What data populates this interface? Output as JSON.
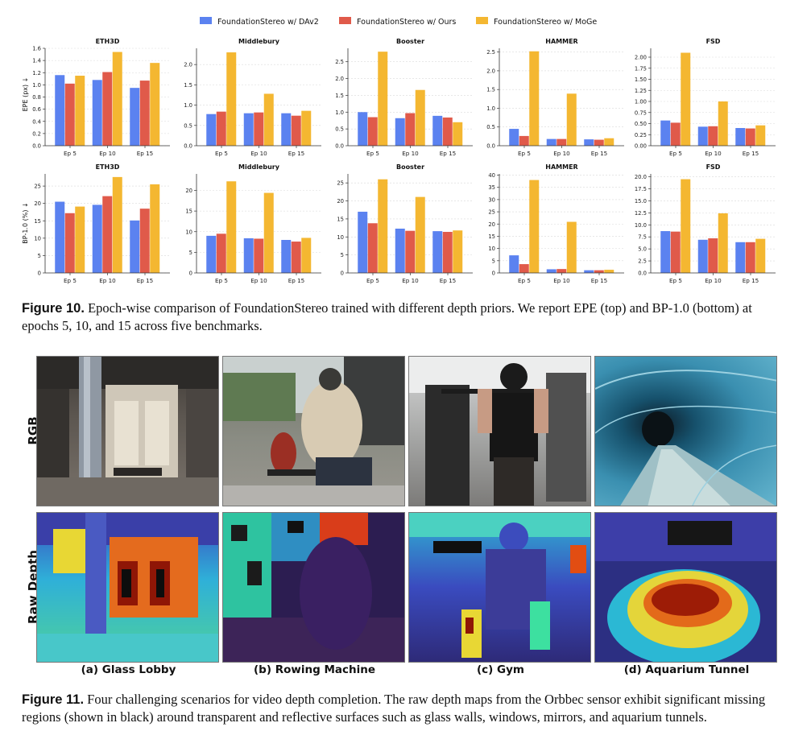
{
  "figure10": {
    "legend": [
      {
        "label": "FoundationStereo w/ DAv2",
        "color": "#5b82f0"
      },
      {
        "label": "FoundationStereo w/ Ours",
        "color": "#e05a4a"
      },
      {
        "label": "FoundationStereo w/ MoGe",
        "color": "#f4b731"
      }
    ],
    "row_ylabels": [
      "EPE (px) ↓",
      "BP-1.0 (%) ↓"
    ],
    "caption_lead": "Figure 10.",
    "caption_text": " Epoch-wise comparison of FoundationStereo trained with different depth priors. We report EPE (top) and BP-1.0 (bottom) at epochs 5, 10, and 15 across five benchmarks."
  },
  "chart_data": [
    {
      "type": "bar",
      "title": "ETH3D",
      "ylabel": "EPE (px) ↓",
      "categories": [
        "Ep 5",
        "Ep 10",
        "Ep 15"
      ],
      "ylim": [
        0,
        1.6
      ],
      "yticks": [
        "0.0",
        "0.2",
        "0.4",
        "0.6",
        "0.8",
        "1.0",
        "1.2",
        "1.4",
        "1.6"
      ],
      "series": [
        {
          "name": "FoundationStereo w/ DAv2",
          "values": [
            1.16,
            1.08,
            0.95
          ]
        },
        {
          "name": "FoundationStereo w/ Ours",
          "values": [
            1.02,
            1.21,
            1.07
          ]
        },
        {
          "name": "FoundationStereo w/ MoGe",
          "values": [
            1.15,
            1.54,
            1.36
          ]
        }
      ]
    },
    {
      "type": "bar",
      "title": "Middlebury",
      "ylabel": "",
      "categories": [
        "Ep 5",
        "Ep 10",
        "Ep 15"
      ],
      "ylim": [
        0,
        2.4
      ],
      "yticks": [
        "0.0",
        "0.5",
        "1.0",
        "1.5",
        "2.0"
      ],
      "series": [
        {
          "name": "FoundationStereo w/ DAv2",
          "values": [
            0.78,
            0.8,
            0.8
          ]
        },
        {
          "name": "FoundationStereo w/ Ours",
          "values": [
            0.84,
            0.82,
            0.74
          ]
        },
        {
          "name": "FoundationStereo w/ MoGe",
          "values": [
            2.3,
            1.28,
            0.86
          ]
        }
      ]
    },
    {
      "type": "bar",
      "title": "Booster",
      "ylabel": "",
      "categories": [
        "Ep 5",
        "Ep 10",
        "Ep 15"
      ],
      "ylim": [
        0,
        2.9
      ],
      "yticks": [
        "0.0",
        "0.5",
        "1.0",
        "1.5",
        "2.0",
        "2.5"
      ],
      "series": [
        {
          "name": "FoundationStereo w/ DAv2",
          "values": [
            1.0,
            0.82,
            0.89
          ]
        },
        {
          "name": "FoundationStereo w/ Ours",
          "values": [
            0.85,
            0.97,
            0.84
          ]
        },
        {
          "name": "FoundationStereo w/ MoGe",
          "values": [
            2.8,
            1.66,
            0.7
          ]
        }
      ]
    },
    {
      "type": "bar",
      "title": "HAMMER",
      "ylabel": "",
      "categories": [
        "Ep 5",
        "Ep 10",
        "Ep 15"
      ],
      "ylim": [
        0,
        2.6
      ],
      "yticks": [
        "0.0",
        "0.5",
        "1.0",
        "1.5",
        "2.0",
        "2.5"
      ],
      "series": [
        {
          "name": "FoundationStereo w/ DAv2",
          "values": [
            0.45,
            0.18,
            0.17
          ]
        },
        {
          "name": "FoundationStereo w/ Ours",
          "values": [
            0.26,
            0.18,
            0.16
          ]
        },
        {
          "name": "FoundationStereo w/ MoGe",
          "values": [
            2.52,
            1.39,
            0.2
          ]
        }
      ]
    },
    {
      "type": "bar",
      "title": "FSD",
      "ylabel": "",
      "categories": [
        "Ep 5",
        "Ep 10",
        "Ep 15"
      ],
      "ylim": [
        0,
        2.2
      ],
      "yticks": [
        "0.00",
        "0.25",
        "0.50",
        "0.75",
        "1.00",
        "1.25",
        "1.50",
        "1.75",
        "2.00"
      ],
      "series": [
        {
          "name": "FoundationStereo w/ DAv2",
          "values": [
            0.57,
            0.43,
            0.4
          ]
        },
        {
          "name": "FoundationStereo w/ Ours",
          "values": [
            0.52,
            0.44,
            0.39
          ]
        },
        {
          "name": "FoundationStereo w/ MoGe",
          "values": [
            2.1,
            1.0,
            0.46
          ]
        }
      ]
    },
    {
      "type": "bar",
      "title": "ETH3D",
      "ylabel": "BP-1.0 (%) ↓",
      "categories": [
        "Ep 5",
        "Ep 10",
        "Ep 15"
      ],
      "ylim": [
        0,
        28.5
      ],
      "yticks": [
        "0",
        "5",
        "10",
        "15",
        "20",
        "25"
      ],
      "series": [
        {
          "name": "FoundationStereo w/ DAv2",
          "values": [
            20.5,
            19.6,
            15.1
          ]
        },
        {
          "name": "FoundationStereo w/ Ours",
          "values": [
            17.2,
            22.1,
            18.5
          ]
        },
        {
          "name": "FoundationStereo w/ MoGe",
          "values": [
            19.1,
            27.6,
            25.5
          ]
        }
      ]
    },
    {
      "type": "bar",
      "title": "Middlebury",
      "ylabel": "",
      "categories": [
        "Ep 5",
        "Ep 10",
        "Ep 15"
      ],
      "ylim": [
        0,
        24
      ],
      "yticks": [
        "0",
        "5",
        "10",
        "15",
        "20"
      ],
      "series": [
        {
          "name": "FoundationStereo w/ DAv2",
          "values": [
            9.0,
            8.4,
            8.0
          ]
        },
        {
          "name": "FoundationStereo w/ Ours",
          "values": [
            9.5,
            8.3,
            7.6
          ]
        },
        {
          "name": "FoundationStereo w/ MoGe",
          "values": [
            22.2,
            19.4,
            8.5
          ]
        }
      ]
    },
    {
      "type": "bar",
      "title": "Booster",
      "ylabel": "",
      "categories": [
        "Ep 5",
        "Ep 10",
        "Ep 15"
      ],
      "ylim": [
        0,
        27.5
      ],
      "yticks": [
        "0",
        "5",
        "10",
        "15",
        "20",
        "25"
      ],
      "series": [
        {
          "name": "FoundationStereo w/ DAv2",
          "values": [
            17.0,
            12.3,
            11.6
          ]
        },
        {
          "name": "FoundationStereo w/ Ours",
          "values": [
            13.8,
            11.7,
            11.4
          ]
        },
        {
          "name": "FoundationStereo w/ MoGe",
          "values": [
            26.0,
            21.1,
            11.8
          ]
        }
      ]
    },
    {
      "type": "bar",
      "title": "HAMMER",
      "ylabel": "",
      "categories": [
        "Ep 5",
        "Ep 10",
        "Ep 15"
      ],
      "ylim": [
        0,
        40.5
      ],
      "yticks": [
        "0",
        "5",
        "10",
        "15",
        "20",
        "25",
        "30",
        "35",
        "40"
      ],
      "series": [
        {
          "name": "FoundationStereo w/ DAv2",
          "values": [
            7.2,
            1.5,
            1.1
          ]
        },
        {
          "name": "FoundationStereo w/ Ours",
          "values": [
            3.6,
            1.6,
            1.1
          ]
        },
        {
          "name": "FoundationStereo w/ MoGe",
          "values": [
            38.0,
            20.9,
            1.3
          ]
        }
      ]
    },
    {
      "type": "bar",
      "title": "FSD",
      "ylabel": "",
      "categories": [
        "Ep 5",
        "Ep 10",
        "Ep 15"
      ],
      "ylim": [
        0,
        20.6
      ],
      "yticks": [
        "0.0",
        "2.5",
        "5.0",
        "7.5",
        "10.0",
        "12.5",
        "15.0",
        "17.5",
        "20.0"
      ],
      "series": [
        {
          "name": "FoundationStereo w/ DAv2",
          "values": [
            8.7,
            6.9,
            6.4
          ]
        },
        {
          "name": "FoundationStereo w/ Ours",
          "values": [
            8.6,
            7.2,
            6.4
          ]
        },
        {
          "name": "FoundationStereo w/ MoGe",
          "values": [
            19.5,
            12.4,
            7.1
          ]
        }
      ]
    }
  ],
  "figure11": {
    "row_labels": [
      "RGB",
      "Raw Depth"
    ],
    "scenes": [
      {
        "caption": "(a) Glass Lobby"
      },
      {
        "caption": "(b) Rowing Machine"
      },
      {
        "caption": "(c) Gym"
      },
      {
        "caption": "(d) Aquarium Tunnel"
      }
    ],
    "caption_lead": "Figure 11.",
    "caption_text": " Four challenging scenarios for video depth completion. The raw depth maps from the Orbbec sensor exhibit significant missing regions (shown in black) around transparent and reflective surfaces such as glass walls, windows, mirrors, and aquarium tunnels."
  }
}
